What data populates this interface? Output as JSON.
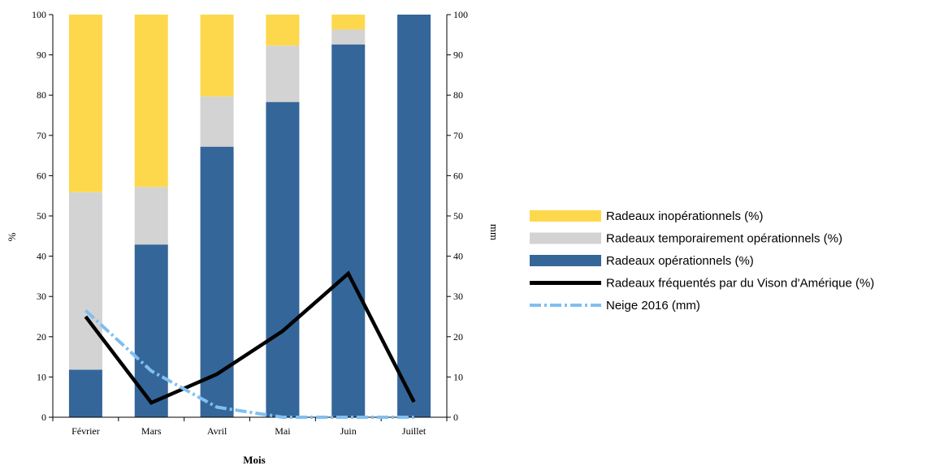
{
  "chart_data": {
    "type": "bar",
    "stacked": true,
    "categories": [
      "Février",
      "Mars",
      "Avril",
      "Mai",
      "Juin",
      "Juillet"
    ],
    "xlabel": "Mois",
    "ylabel_left": "%",
    "ylabel_right": "mm",
    "ylim_left": [
      0,
      100
    ],
    "ylim_right": [
      0,
      100
    ],
    "yticks": [
      0,
      10,
      20,
      30,
      40,
      50,
      60,
      70,
      80,
      90,
      100
    ],
    "grid": false,
    "legend_position": "right",
    "series": [
      {
        "name": "Radeaux opérationnels (%)",
        "kind": "bar",
        "axis": "left",
        "color": "#34669a",
        "values": [
          11.8,
          42.9,
          67.2,
          78.3,
          92.6,
          100
        ]
      },
      {
        "name": "Radeaux temporairement opérationnels (%)",
        "kind": "bar",
        "axis": "left",
        "color": "#d3d3d3",
        "values": [
          44.1,
          14.3,
          12.5,
          14.0,
          3.7,
          0
        ]
      },
      {
        "name": "Radeaux inopérationnels (%)",
        "kind": "bar",
        "axis": "left",
        "color": "#fdd84c",
        "values": [
          44.1,
          42.8,
          20.3,
          7.7,
          3.7,
          0
        ]
      },
      {
        "name": "Radeaux fréquentés par du Vison d'Amérique (%)",
        "kind": "line",
        "axis": "left",
        "color": "#000000",
        "values": [
          25.0,
          3.6,
          10.7,
          21.4,
          35.7,
          3.8
        ]
      },
      {
        "name": "Neige 2016 (mm)",
        "kind": "line",
        "axis": "right",
        "dashed": true,
        "color": "#7fbff2",
        "values": [
          26.5,
          11.5,
          2.5,
          0,
          0,
          0
        ]
      }
    ],
    "legend_order": [
      "Radeaux inopérationnels (%)",
      "Radeaux temporairement opérationnels (%)",
      "Radeaux opérationnels (%)",
      "Radeaux fréquentés par du Vison d'Amérique (%)",
      "Neige 2016 (mm)"
    ]
  }
}
